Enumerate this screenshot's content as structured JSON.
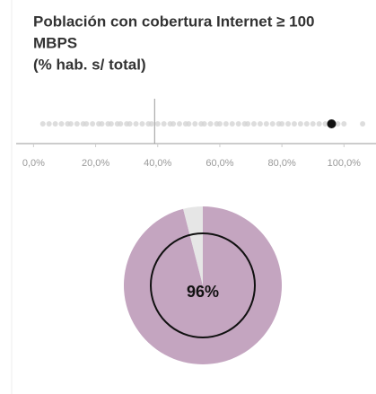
{
  "chart_data": [
    {
      "type": "strip",
      "title": [
        "Población con cobertura Internet ≥ 100",
        "MBPS",
        "(% hab. s/ total)"
      ],
      "series": [
        {
          "color": "#d4d4d4",
          "values": [
            3,
            5,
            7,
            9,
            11,
            12,
            14,
            16,
            17,
            19,
            21,
            22,
            24,
            25,
            27,
            28,
            30,
            31,
            33,
            35,
            37,
            38,
            40,
            42,
            44,
            45,
            47,
            49,
            50,
            52,
            54,
            55,
            57,
            59,
            60,
            62,
            64,
            66,
            68,
            69,
            71,
            73,
            75,
            77,
            79,
            80,
            82,
            84,
            86,
            88,
            90,
            92,
            94,
            98,
            100,
            106
          ]
        },
        {
          "color": "#111111",
          "values": [
            96
          ]
        }
      ],
      "reference_line": 39,
      "xlim": [
        -3,
        108
      ],
      "xticks": [
        {
          "value": 0,
          "label": "0,0%"
        },
        {
          "value": 20,
          "label": "20,0%"
        },
        {
          "value": 40,
          "label": "40,0%"
        },
        {
          "value": 60,
          "label": "60,0%"
        },
        {
          "value": 80,
          "label": "80,0%"
        },
        {
          "value": 100,
          "label": "100,0%"
        }
      ]
    },
    {
      "type": "pie",
      "values": [
        96,
        4
      ],
      "colors": [
        "#c4a5c0",
        "#e6e6e6"
      ],
      "value_labels": [
        "96%",
        null
      ]
    }
  ]
}
